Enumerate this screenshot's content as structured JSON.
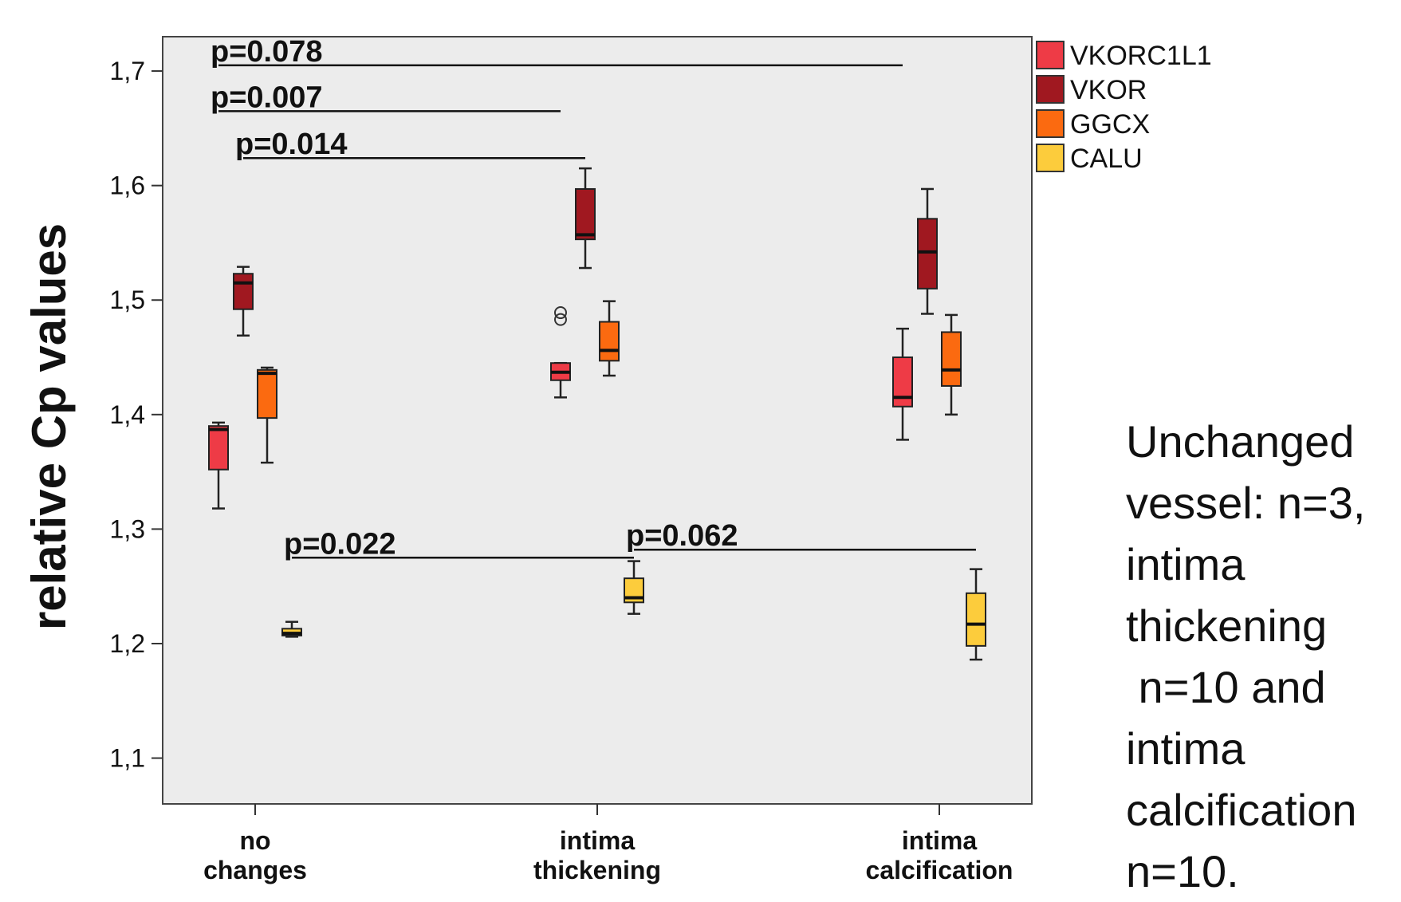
{
  "chart_data": {
    "type": "boxplot",
    "ylabel": "relative Cp values",
    "ylim": [
      1.06,
      1.73
    ],
    "yticks": [
      1.1,
      1.2,
      1.3,
      1.4,
      1.5,
      1.6,
      1.7
    ],
    "ytick_labels": [
      "1,1",
      "1,2",
      "1,3",
      "1,4",
      "1,5",
      "1,6",
      "1,7"
    ],
    "categories": [
      {
        "line1": "no",
        "line2": "changes"
      },
      {
        "line1": "intima",
        "line2": "thickening"
      },
      {
        "line1": "intima",
        "line2": "calcification"
      }
    ],
    "grid": false,
    "legend_position": "right",
    "series": [
      {
        "name": "VKORC1L1",
        "color": "#ee3b46",
        "boxes": [
          {
            "min": 1.318,
            "q1": 1.352,
            "median": 1.387,
            "q3": 1.39,
            "max": 1.393,
            "outliers": []
          },
          {
            "min": 1.415,
            "q1": 1.43,
            "median": 1.437,
            "q3": 1.445,
            "max": 1.445,
            "outliers": [
              1.483,
              1.489
            ]
          },
          {
            "min": 1.378,
            "q1": 1.407,
            "median": 1.415,
            "q3": 1.45,
            "max": 1.475,
            "outliers": []
          }
        ]
      },
      {
        "name": "VKOR",
        "color": "#a01820",
        "boxes": [
          {
            "min": 1.469,
            "q1": 1.492,
            "median": 1.515,
            "q3": 1.523,
            "max": 1.529,
            "outliers": []
          },
          {
            "min": 1.528,
            "q1": 1.553,
            "median": 1.557,
            "q3": 1.597,
            "max": 1.615,
            "outliers": []
          },
          {
            "min": 1.488,
            "q1": 1.51,
            "median": 1.542,
            "q3": 1.571,
            "max": 1.597,
            "outliers": []
          }
        ]
      },
      {
        "name": "GGCX",
        "color": "#fb6a10",
        "boxes": [
          {
            "min": 1.358,
            "q1": 1.397,
            "median": 1.436,
            "q3": 1.439,
            "max": 1.441,
            "outliers": []
          },
          {
            "min": 1.434,
            "q1": 1.447,
            "median": 1.456,
            "q3": 1.481,
            "max": 1.499,
            "outliers": []
          },
          {
            "min": 1.4,
            "q1": 1.425,
            "median": 1.439,
            "q3": 1.472,
            "max": 1.487,
            "outliers": []
          }
        ]
      },
      {
        "name": "CALU",
        "color": "#fccc3c",
        "boxes": [
          {
            "min": 1.206,
            "q1": 1.207,
            "median": 1.209,
            "q3": 1.213,
            "max": 1.219,
            "outliers": []
          },
          {
            "min": 1.226,
            "q1": 1.236,
            "median": 1.24,
            "q3": 1.257,
            "max": 1.272,
            "outliers": []
          },
          {
            "min": 1.186,
            "q1": 1.198,
            "median": 1.217,
            "q3": 1.244,
            "max": 1.265,
            "outliers": []
          }
        ]
      }
    ],
    "annotations": [
      {
        "text": "p=0.078",
        "y": 1.705,
        "from_category": 0,
        "from_series": 0,
        "to_category": 2,
        "to_series": 0
      },
      {
        "text": "p=0.007",
        "y": 1.665,
        "from_category": 0,
        "from_series": 0,
        "to_category": 1,
        "to_series": 0
      },
      {
        "text": "p=0.014",
        "y": 1.624,
        "from_category": 0,
        "from_series": 1,
        "to_category": 1,
        "to_series": 1
      },
      {
        "text": "p=0.022",
        "y": 1.275,
        "from_category": 0,
        "from_series": 3,
        "to_category": 1,
        "to_series": 3
      },
      {
        "text": "p=0.062",
        "y": 1.282,
        "from_category": 1,
        "from_series": 3,
        "to_category": 2,
        "to_series": 3
      }
    ]
  },
  "note": {
    "lines": [
      "Unchanged",
      "vessel: n=3,",
      "intima",
      "thickening",
      " n=10 and",
      "intima",
      "calcification",
      "n=10."
    ]
  }
}
